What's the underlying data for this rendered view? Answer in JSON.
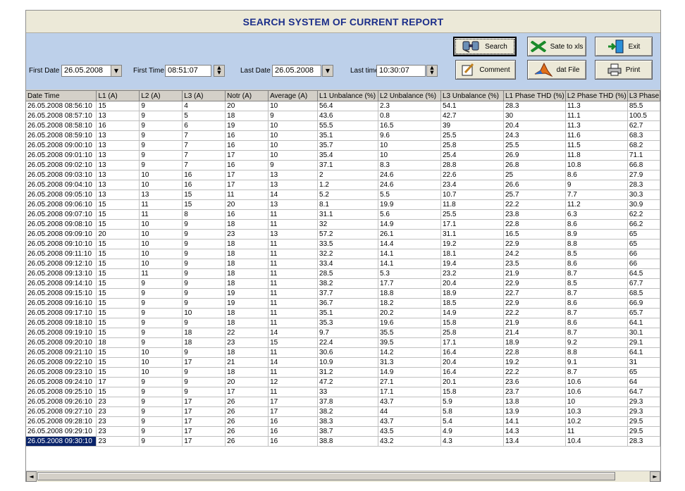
{
  "window": {
    "title": "SEARCH SYSTEM OF CURRENT REPORT"
  },
  "filters": {
    "first_date_label": "First Date :",
    "first_date_value": "26.05.2008",
    "first_time_label": "First Time :",
    "first_time_value": "08:51:07",
    "last_date_label": "Last Date :",
    "last_date_value": "26.05.2008",
    "last_time_label": "Last time :",
    "last_time_value": "10:30:07"
  },
  "buttons": {
    "search": "Search",
    "save_xls": "Sate to xls",
    "exit": "Exit",
    "comment": "Comment",
    "dat_file": "dat File",
    "print": "Print"
  },
  "icons": {
    "dropdown": "dropdown-arrow-icon",
    "spin": "spin-updown-icon",
    "search": "search-binoculars-icon",
    "excel": "excel-icon",
    "exit": "exit-door-icon",
    "comment": "comment-note-icon",
    "dat_file": "matlab-icon",
    "print": "printer-icon"
  },
  "colors": {
    "title_text": "#1c2f8a",
    "filter_bg": "#bdd0ea",
    "selection": "#0a246a"
  },
  "table": {
    "columns": [
      "Date Time",
      "L1 (A)",
      "L2 (A)",
      "L3 (A)",
      "Notr (A)",
      "Average (A)",
      "L1 Unbalance (%)",
      "L2 Unbalance (%)",
      "L3 Unbalance (%)",
      "L1 Phase THD (%)",
      "L2 Phase THD (%)",
      "L3 Phase"
    ],
    "rows": [
      [
        "26.05.2008 08:56:10",
        "15",
        "9",
        "4",
        "20",
        "10",
        "56.4",
        "2.3",
        "54.1",
        "28.3",
        "11.3",
        "85.5"
      ],
      [
        "26.05.2008 08:57:10",
        "13",
        "9",
        "5",
        "18",
        "9",
        "43.6",
        "0.8",
        "42.7",
        "30",
        "11.1",
        "100.5"
      ],
      [
        "26.05.2008 08:58:10",
        "16",
        "9",
        "6",
        "19",
        "10",
        "55.5",
        "16.5",
        "39",
        "20.4",
        "11.3",
        "62.7"
      ],
      [
        "26.05.2008 08:59:10",
        "13",
        "9",
        "7",
        "16",
        "10",
        "35.1",
        "9.6",
        "25.5",
        "24.3",
        "11.6",
        "68.3"
      ],
      [
        "26.05.2008 09:00:10",
        "13",
        "9",
        "7",
        "16",
        "10",
        "35.7",
        "10",
        "25.8",
        "25.5",
        "11.5",
        "68.2"
      ],
      [
        "26.05.2008 09:01:10",
        "13",
        "9",
        "7",
        "17",
        "10",
        "35.4",
        "10",
        "25.4",
        "26.9",
        "11.8",
        "71.1"
      ],
      [
        "26.05.2008 09:02:10",
        "13",
        "9",
        "7",
        "16",
        "9",
        "37.1",
        "8.3",
        "28.8",
        "26.8",
        "10.8",
        "66.8"
      ],
      [
        "26.05.2008 09:03:10",
        "13",
        "10",
        "16",
        "17",
        "13",
        "2",
        "24.6",
        "22.6",
        "25",
        "8.6",
        "27.9"
      ],
      [
        "26.05.2008 09:04:10",
        "13",
        "10",
        "16",
        "17",
        "13",
        "1.2",
        "24.6",
        "23.4",
        "26.6",
        "9",
        "28.3"
      ],
      [
        "26.05.2008 09:05:10",
        "13",
        "13",
        "15",
        "11",
        "14",
        "5.2",
        "5.5",
        "10.7",
        "25.7",
        "7.7",
        "30.3"
      ],
      [
        "26.05.2008 09:06:10",
        "15",
        "11",
        "15",
        "20",
        "13",
        "8.1",
        "19.9",
        "11.8",
        "22.2",
        "11.2",
        "30.9"
      ],
      [
        "26.05.2008 09:07:10",
        "15",
        "11",
        "8",
        "16",
        "11",
        "31.1",
        "5.6",
        "25.5",
        "23.8",
        "6.3",
        "62.2"
      ],
      [
        "26.05.2008 09:08:10",
        "15",
        "10",
        "9",
        "18",
        "11",
        "32",
        "14.9",
        "17.1",
        "22.8",
        "8.6",
        "66.2"
      ],
      [
        "26.05.2008 09:09:10",
        "20",
        "10",
        "9",
        "23",
        "13",
        "57.2",
        "26.1",
        "31.1",
        "16.5",
        "8.9",
        "65"
      ],
      [
        "26.05.2008 09:10:10",
        "15",
        "10",
        "9",
        "18",
        "11",
        "33.5",
        "14.4",
        "19.2",
        "22.9",
        "8.8",
        "65"
      ],
      [
        "26.05.2008 09:11:10",
        "15",
        "10",
        "9",
        "18",
        "11",
        "32.2",
        "14.1",
        "18.1",
        "24.2",
        "8.5",
        "66"
      ],
      [
        "26.05.2008 09:12:10",
        "15",
        "10",
        "9",
        "18",
        "11",
        "33.4",
        "14.1",
        "19.4",
        "23.5",
        "8.6",
        "66"
      ],
      [
        "26.05.2008 09:13:10",
        "15",
        "11",
        "9",
        "18",
        "11",
        "28.5",
        "5.3",
        "23.2",
        "21.9",
        "8.7",
        "64.5"
      ],
      [
        "26.05.2008 09:14:10",
        "15",
        "9",
        "9",
        "18",
        "11",
        "38.2",
        "17.7",
        "20.4",
        "22.9",
        "8.5",
        "67.7"
      ],
      [
        "26.05.2008 09:15:10",
        "15",
        "9",
        "9",
        "19",
        "11",
        "37.7",
        "18.8",
        "18.9",
        "22.7",
        "8.7",
        "68.5"
      ],
      [
        "26.05.2008 09:16:10",
        "15",
        "9",
        "9",
        "19",
        "11",
        "36.7",
        "18.2",
        "18.5",
        "22.9",
        "8.6",
        "66.9"
      ],
      [
        "26.05.2008 09:17:10",
        "15",
        "9",
        "10",
        "18",
        "11",
        "35.1",
        "20.2",
        "14.9",
        "22.2",
        "8.7",
        "65.7"
      ],
      [
        "26.05.2008 09:18:10",
        "15",
        "9",
        "9",
        "18",
        "11",
        "35.3",
        "19.6",
        "15.8",
        "21.9",
        "8.6",
        "64.1"
      ],
      [
        "26.05.2008 09:19:10",
        "15",
        "9",
        "18",
        "22",
        "14",
        "9.7",
        "35.5",
        "25.8",
        "21.4",
        "8.7",
        "30.1"
      ],
      [
        "26.05.2008 09:20:10",
        "18",
        "9",
        "18",
        "23",
        "15",
        "22.4",
        "39.5",
        "17.1",
        "18.9",
        "9.2",
        "29.1"
      ],
      [
        "26.05.2008 09:21:10",
        "15",
        "10",
        "9",
        "18",
        "11",
        "30.6",
        "14.2",
        "16.4",
        "22.8",
        "8.8",
        "64.1"
      ],
      [
        "26.05.2008 09:22:10",
        "15",
        "10",
        "17",
        "21",
        "14",
        "10.9",
        "31.3",
        "20.4",
        "19.2",
        "9.1",
        "31"
      ],
      [
        "26.05.2008 09:23:10",
        "15",
        "10",
        "9",
        "18",
        "11",
        "31.2",
        "14.9",
        "16.4",
        "22.2",
        "8.7",
        "65"
      ],
      [
        "26.05.2008 09:24:10",
        "17",
        "9",
        "9",
        "20",
        "12",
        "47.2",
        "27.1",
        "20.1",
        "23.6",
        "10.6",
        "64"
      ],
      [
        "26.05.2008 09:25:10",
        "15",
        "9",
        "9",
        "17",
        "11",
        "33",
        "17.1",
        "15.8",
        "23.7",
        "10.6",
        "64.7"
      ],
      [
        "26.05.2008 09:26:10",
        "23",
        "9",
        "17",
        "26",
        "17",
        "37.8",
        "43.7",
        "5.9",
        "13.8",
        "10",
        "29.3"
      ],
      [
        "26.05.2008 09:27:10",
        "23",
        "9",
        "17",
        "26",
        "17",
        "38.2",
        "44",
        "5.8",
        "13.9",
        "10.3",
        "29.3"
      ],
      [
        "26.05.2008 09:28:10",
        "23",
        "9",
        "17",
        "26",
        "16",
        "38.3",
        "43.7",
        "5.4",
        "14.1",
        "10.2",
        "29.5"
      ],
      [
        "26.05.2008 09:29:10",
        "23",
        "9",
        "17",
        "26",
        "16",
        "38.7",
        "43.5",
        "4.9",
        "14.3",
        "11",
        "29.5"
      ],
      [
        "26.05.2008 09:30:10",
        "23",
        "9",
        "17",
        "26",
        "16",
        "38.8",
        "43.2",
        "4.3",
        "13.4",
        "10.4",
        "28.3"
      ]
    ],
    "selected_row": 34
  },
  "scrollbar": {
    "left_arrow": "◄",
    "right_arrow": "►"
  }
}
